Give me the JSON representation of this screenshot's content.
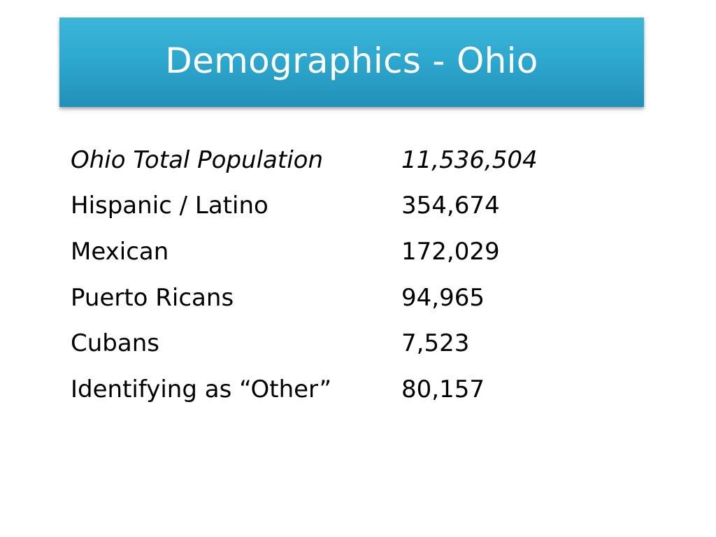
{
  "slide": {
    "title": "Demographics - Ohio",
    "banner_color": "#2ea9cf",
    "rows": [
      {
        "label": "Ohio Total Population",
        "value": "11,536,504"
      },
      {
        "label": "Hispanic / Latino",
        "value": "354,674"
      },
      {
        "label": "Mexican",
        "value": "172,029"
      },
      {
        "label": "Puerto Ricans",
        "value": "94,965"
      },
      {
        "label": "Cubans",
        "value": "7,523"
      },
      {
        "label": "Identifying as “Other”",
        "value": "80,157"
      }
    ]
  }
}
